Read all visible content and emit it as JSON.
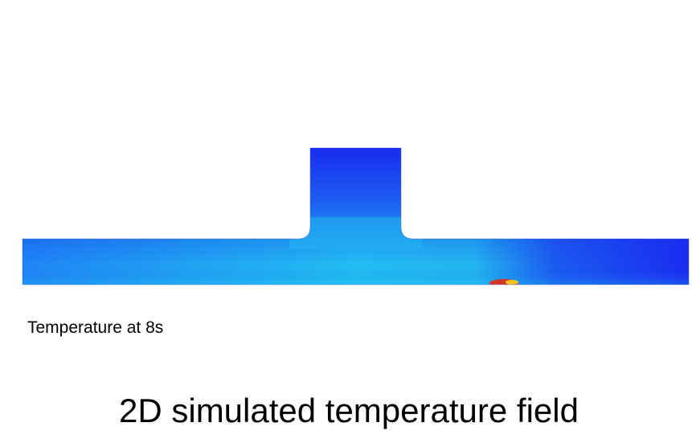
{
  "figure": {
    "caption": "Temperature at 8s",
    "title": "2D simulated temperature field"
  },
  "colors": {
    "cold": "#1a2cf0",
    "cool": "#1f86f5",
    "mild": "#20d0ee",
    "warm": "#7dea5a",
    "hot": "#f5d21d",
    "hottest": "#e52b10"
  }
}
